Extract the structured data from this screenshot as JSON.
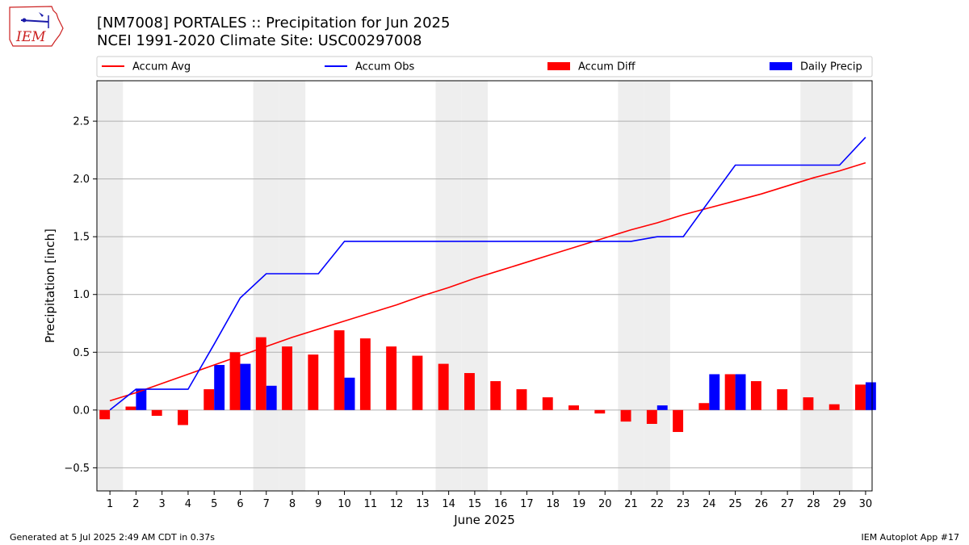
{
  "title_line1": "[NM7008] PORTALES :: Precipitation for Jun 2025",
  "title_line2": "NCEI 1991-2020 Climate Site: USC00297008",
  "logo_text": "IEM",
  "footer_left": "Generated at 5 Jul 2025 2:49 AM CDT in 0.37s",
  "footer_right": "IEM Autoplot App #17",
  "colors": {
    "avg": "#ff0000",
    "obs": "#0000ff",
    "diff": "#ff0000",
    "daily": "#0000ff",
    "weekend_shade": "#eeeeee",
    "grid": "#b0b0b0"
  },
  "chart_data": {
    "type": "bar",
    "xlabel": "June 2025",
    "ylabel": "Precipitation [inch]",
    "ylim": [
      -0.7,
      2.85
    ],
    "yticks": [
      -0.5,
      0.0,
      0.5,
      1.0,
      1.5,
      2.0,
      2.5
    ],
    "ytick_labels": [
      "−0.5",
      "0.0",
      "0.5",
      "1.0",
      "1.5",
      "2.0",
      "2.5"
    ],
    "grid": "horizontal",
    "legend_position": "top",
    "x": [
      "1",
      "2",
      "3",
      "4",
      "5",
      "6",
      "7",
      "8",
      "9",
      "10",
      "11",
      "12",
      "13",
      "14",
      "15",
      "16",
      "17",
      "18",
      "19",
      "20",
      "21",
      "22",
      "23",
      "24",
      "25",
      "26",
      "27",
      "28",
      "29",
      "30"
    ],
    "shaded_days": [
      1,
      7,
      8,
      14,
      15,
      21,
      22,
      28,
      29
    ],
    "series": [
      {
        "name": "Accum Avg",
        "kind": "line",
        "values": [
          0.08,
          0.15,
          0.23,
          0.31,
          0.39,
          0.47,
          0.55,
          0.63,
          0.7,
          0.77,
          0.84,
          0.91,
          0.99,
          1.06,
          1.14,
          1.21,
          1.28,
          1.35,
          1.42,
          1.49,
          1.56,
          1.62,
          1.69,
          1.75,
          1.81,
          1.87,
          1.94,
          2.01,
          2.07,
          2.14
        ]
      },
      {
        "name": "Accum Obs",
        "kind": "line",
        "values": [
          0.0,
          0.18,
          0.18,
          0.18,
          0.57,
          0.97,
          1.18,
          1.18,
          1.18,
          1.46,
          1.46,
          1.46,
          1.46,
          1.46,
          1.46,
          1.46,
          1.46,
          1.46,
          1.46,
          1.46,
          1.46,
          1.5,
          1.5,
          1.81,
          2.12,
          2.12,
          2.12,
          2.12,
          2.12,
          2.36
        ]
      },
      {
        "name": "Accum Diff",
        "kind": "bar",
        "values": [
          -0.08,
          0.03,
          -0.05,
          -0.13,
          0.18,
          0.5,
          0.63,
          0.55,
          0.48,
          0.69,
          0.62,
          0.55,
          0.47,
          0.4,
          0.32,
          0.25,
          0.18,
          0.11,
          0.04,
          -0.03,
          -0.1,
          -0.12,
          -0.19,
          0.06,
          0.31,
          0.25,
          0.18,
          0.11,
          0.05,
          0.22
        ]
      },
      {
        "name": "Daily Precip",
        "kind": "bar",
        "values": [
          0.0,
          0.18,
          0.0,
          0.0,
          0.39,
          0.4,
          0.21,
          0.0,
          0.0,
          0.28,
          0.0,
          0.0,
          0.0,
          0.0,
          0.0,
          0.0,
          0.0,
          0.0,
          0.0,
          0.0,
          0.0,
          0.04,
          0.0,
          0.31,
          0.31,
          0.0,
          0.0,
          0.0,
          0.0,
          0.24
        ]
      }
    ]
  }
}
